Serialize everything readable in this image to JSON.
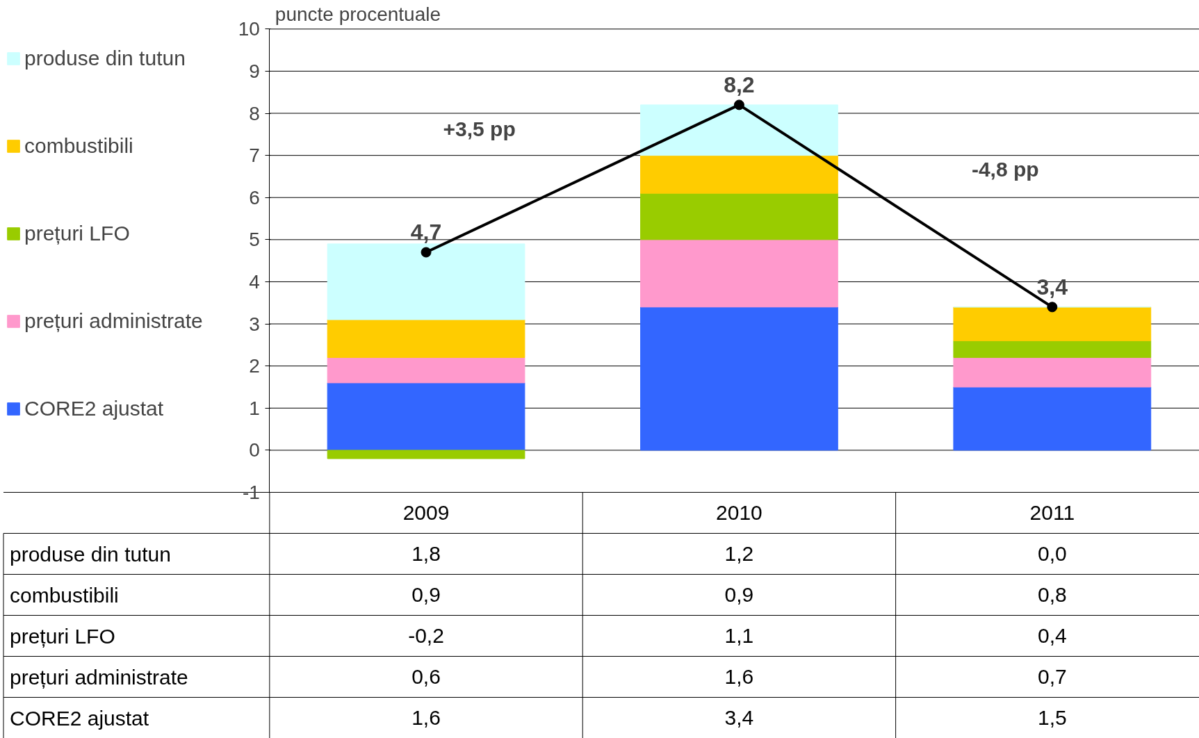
{
  "chart_data": {
    "type": "bar",
    "ylabel": "puncte procentuale",
    "categories": [
      "2009",
      "2010",
      "2011"
    ],
    "stacked": true,
    "ylim": [
      -1,
      10
    ],
    "yticks": [
      -1,
      0,
      1,
      2,
      3,
      4,
      5,
      6,
      7,
      8,
      9,
      10
    ],
    "grid": "y",
    "legend": "left",
    "marker": "circle",
    "series": [
      {
        "name": "CORE2 ajustat",
        "color": "#3366ff",
        "values": [
          1.6,
          3.4,
          1.5
        ],
        "value_labels": [
          "1,6",
          "3,4",
          "1,5"
        ]
      },
      {
        "name": "prețuri administrate",
        "color": "#ff99cc",
        "values": [
          0.6,
          1.6,
          0.7
        ],
        "value_labels": [
          "0,6",
          "1,6",
          "0,7"
        ]
      },
      {
        "name": "prețuri LFO",
        "color": "#99cc00",
        "values": [
          -0.2,
          1.1,
          0.4
        ],
        "value_labels": [
          "-0,2",
          "1,1",
          "0,4"
        ]
      },
      {
        "name": "combustibili",
        "color": "#ffcc00",
        "values": [
          0.9,
          0.9,
          0.8
        ],
        "value_labels": [
          "0,9",
          "0,9",
          "0,8"
        ]
      },
      {
        "name": "produse din tutun",
        "color": "#ccffff",
        "values": [
          1.8,
          1.2,
          0.0
        ],
        "value_labels": [
          "1,8",
          "1,2",
          "0,0"
        ]
      },
      {
        "type": "line",
        "color": "#000000",
        "values": [
          4.7,
          8.2,
          3.4
        ],
        "value_labels": [
          "4,7",
          "8,2",
          "3,4"
        ]
      }
    ],
    "annotations": [
      "+3,5 pp",
      "-4,8 pp"
    ]
  }
}
